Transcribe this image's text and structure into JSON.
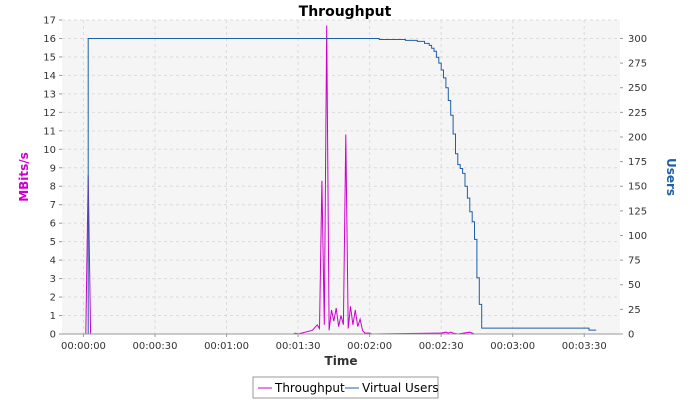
{
  "chart_data": {
    "type": "line",
    "title": "Throughput",
    "xlabel": "Time",
    "ylabel": "MBits/s",
    "y2label": "Users",
    "xlim": [
      -9,
      225
    ],
    "ylim": [
      0,
      17
    ],
    "y2lim": [
      0,
      318.75
    ],
    "xtick_values": [
      0,
      30,
      60,
      90,
      120,
      150,
      180,
      210
    ],
    "xtick_labels": [
      "00:00:00",
      "00:00:30",
      "00:01:00",
      "00:01:30",
      "00:02:00",
      "00:02:30",
      "00:03:00",
      "00:03:30"
    ],
    "ytick_labels": [
      "0",
      "1",
      "2",
      "3",
      "4",
      "5",
      "6",
      "7",
      "8",
      "9",
      "10",
      "11",
      "12",
      "13",
      "14",
      "15",
      "16",
      "17"
    ],
    "y2tick_labels": [
      "0",
      "25",
      "50",
      "75",
      "100",
      "125",
      "150",
      "175",
      "200",
      "225",
      "250",
      "275",
      "300"
    ],
    "grid": true,
    "legend_position": "bottom",
    "colors": {
      "throughput": "#cc00cc",
      "users": "#1f5fa8",
      "plot_bg": "#f5f5f5",
      "grid": "#dcdcdc"
    },
    "series": [
      {
        "name": "Throughput",
        "axis": "left",
        "x": [
          -3,
          1,
          2,
          3,
          4,
          5,
          70,
          88,
          89,
          90,
          96,
          98,
          99,
          100,
          101,
          102,
          103,
          104,
          105,
          106,
          107,
          108,
          109,
          110,
          111,
          112,
          113,
          114,
          115,
          116,
          117,
          118,
          119,
          120,
          121,
          122,
          148,
          150,
          152,
          153,
          154,
          155,
          157,
          162,
          164,
          175,
          216
        ],
        "y": [
          0,
          0,
          8.6,
          0,
          0,
          0,
          0,
          0,
          0.05,
          0,
          0.2,
          0.5,
          0.3,
          8.3,
          0.5,
          16.7,
          0.2,
          1.3,
          0.7,
          1.4,
          0.4,
          1.0,
          0.5,
          10.8,
          0.3,
          1.5,
          0.5,
          1.3,
          0.4,
          0.8,
          0.2,
          0.05,
          0.05,
          0.05,
          0,
          0,
          0.05,
          0.05,
          0.1,
          0.05,
          0.1,
          0.05,
          0,
          0.1,
          0,
          0,
          0
        ]
      },
      {
        "name": "Virtual Users",
        "axis": "right",
        "x": [
          1,
          2,
          120,
          124,
          135,
          140,
          143,
          145,
          146,
          147,
          148,
          149,
          150,
          151,
          152,
          153,
          154,
          155,
          156,
          157,
          158,
          159,
          160,
          161,
          162,
          163,
          164,
          165,
          166,
          167,
          168,
          169,
          170,
          171,
          172,
          173,
          174,
          175,
          176,
          177,
          178,
          190,
          200,
          212,
          215
        ],
        "y": [
          0,
          300,
          300,
          299,
          298,
          297,
          295,
          293,
          290,
          287,
          281,
          275,
          268,
          260,
          250,
          237,
          222,
          203,
          183,
          172,
          168,
          163,
          150,
          138,
          124,
          114,
          96,
          57,
          30,
          6,
          6,
          6,
          6,
          6,
          6,
          6,
          6,
          6,
          6,
          6,
          6,
          6,
          6,
          4,
          4
        ]
      }
    ]
  }
}
